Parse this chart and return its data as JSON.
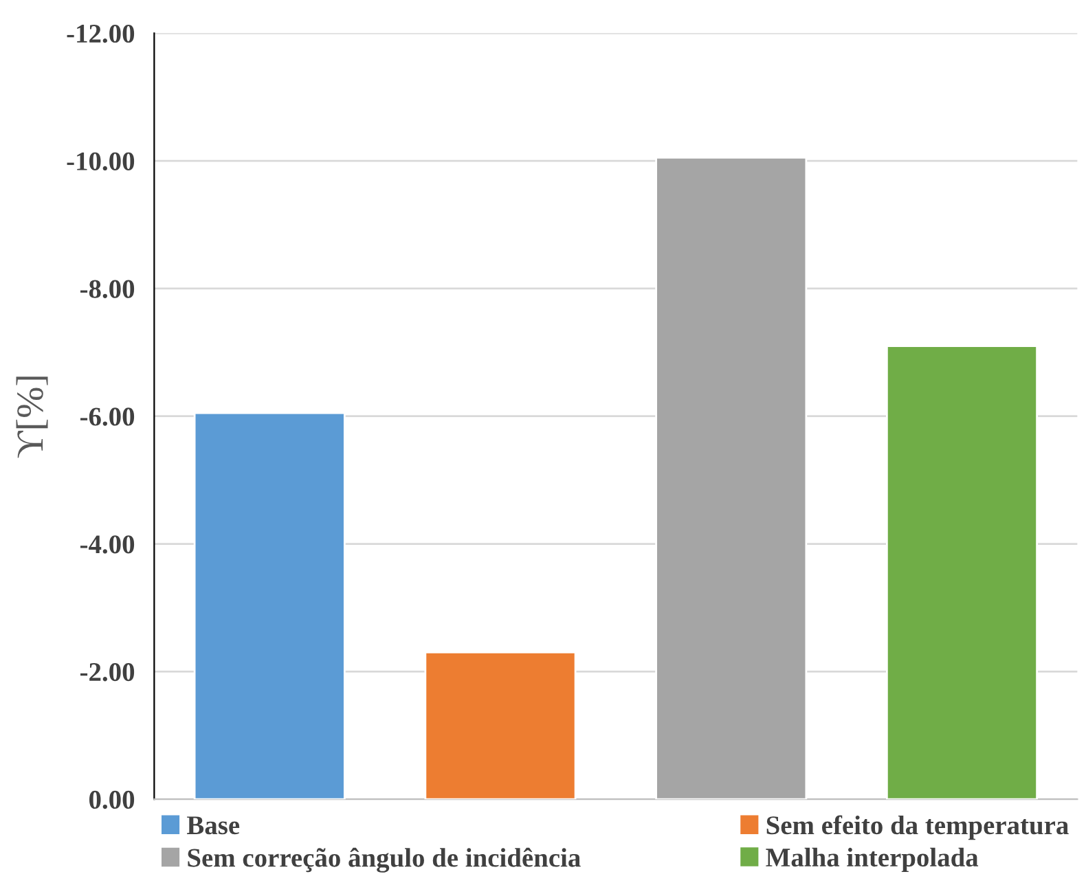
{
  "chart_data": {
    "type": "bar",
    "ylabel": "ϒ[%]",
    "categories": [
      null,
      null,
      null,
      null
    ],
    "series": [
      {
        "name": "Base",
        "color": "#5b9bd5",
        "values": [
          -6.05,
          null,
          null,
          null
        ]
      },
      {
        "name": "Sem efeito da temperatura",
        "color": "#ed7d31",
        "values": [
          null,
          -2.3,
          null,
          null
        ]
      },
      {
        "name": "Sem correção ângulo de incidência",
        "color": "#a5a5a5",
        "values": [
          null,
          null,
          -10.05,
          null
        ]
      },
      {
        "name": "Malha interpolada",
        "color": "#70ad47",
        "values": [
          null,
          null,
          null,
          -7.1
        ]
      }
    ],
    "ylim": [
      0,
      -12
    ],
    "yticks": [
      {
        "value": 0,
        "label": "0.00"
      },
      {
        "value": -2,
        "label": "-2.00"
      },
      {
        "value": -4,
        "label": "-4.00"
      },
      {
        "value": -6,
        "label": "-6.00"
      },
      {
        "value": -8,
        "label": "-8.00"
      },
      {
        "value": -10,
        "label": "-10.00"
      },
      {
        "value": -12,
        "label": "-12.00"
      }
    ],
    "grid": "y",
    "legend": "bottom"
  }
}
